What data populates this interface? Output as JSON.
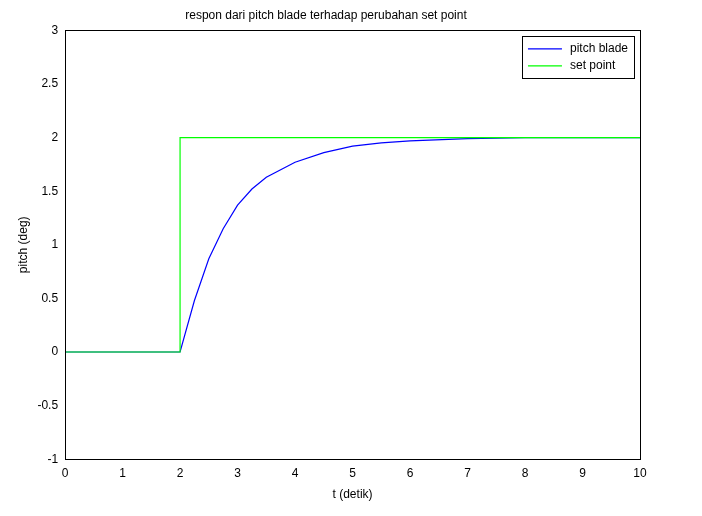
{
  "chart_data": {
    "type": "line",
    "title": "respon dari pitch blade terhadap perubahan set point",
    "x_label": "t (detik)",
    "y_label": "pitch (deg)",
    "x": [
      0,
      2,
      2,
      2.25,
      2.5,
      2.75,
      3,
      3.25,
      3.5,
      4,
      4.5,
      5,
      5.5,
      6,
      7,
      8,
      9,
      10
    ],
    "series": [
      {
        "name": "pitch blade",
        "color": "#0000ff",
        "values": [
          0,
          0,
          0,
          0.48,
          0.87,
          1.15,
          1.37,
          1.52,
          1.63,
          1.77,
          1.86,
          1.92,
          1.95,
          1.97,
          1.99,
          2,
          2,
          2
        ]
      },
      {
        "name": "set point",
        "color": "#00ff00",
        "values": [
          0,
          0,
          2,
          2,
          2,
          2,
          2,
          2,
          2,
          2,
          2,
          2,
          2,
          2,
          2,
          2,
          2,
          2
        ]
      }
    ],
    "xlim": [
      0,
      10
    ],
    "xticks": [
      0,
      1,
      2,
      3,
      4,
      5,
      6,
      7,
      8,
      9,
      10
    ],
    "ylim": [
      -1,
      3
    ],
    "yticks": [
      -1,
      -0.5,
      0,
      0.5,
      1,
      1.5,
      2,
      2.5,
      3
    ],
    "grid": false,
    "legend": "upper right"
  }
}
